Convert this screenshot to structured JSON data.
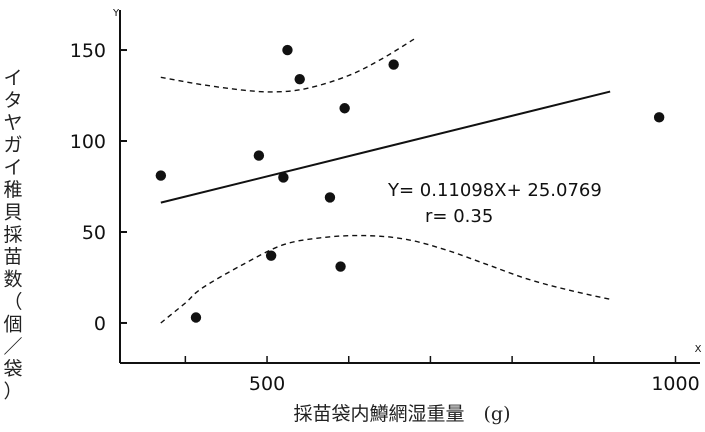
{
  "chart_data": {
    "type": "scatter",
    "xlabel": "採苗袋内鱒網湿重量　(g)",
    "ylabel": "イタヤガイ稚貝採苗数（個／袋）",
    "x_axis_letter": "X",
    "y_axis_letter": "Y",
    "xlim": [
      320,
      1030
    ],
    "ylim": [
      -22,
      172
    ],
    "x_ticks": [
      500,
      1000
    ],
    "x_minor_ticks": [
      400,
      600,
      700,
      800,
      900
    ],
    "y_ticks": [
      0,
      50,
      100,
      150
    ],
    "grid": false,
    "points": [
      {
        "x": 370,
        "y": 81
      },
      {
        "x": 413,
        "y": 3
      },
      {
        "x": 490,
        "y": 92
      },
      {
        "x": 505,
        "y": 37
      },
      {
        "x": 520,
        "y": 80
      },
      {
        "x": 525,
        "y": 150
      },
      {
        "x": 540,
        "y": 134
      },
      {
        "x": 577,
        "y": 69
      },
      {
        "x": 590,
        "y": 31
      },
      {
        "x": 595,
        "y": 118
      },
      {
        "x": 655,
        "y": 142
      },
      {
        "x": 980,
        "y": 113
      }
    ],
    "regression": {
      "slope": 0.11098,
      "intercept": 25.0769,
      "x_range": [
        370,
        920
      ]
    },
    "confidence_upper": [
      [
        370,
        135
      ],
      [
        420,
        131
      ],
      [
        470,
        128
      ],
      [
        510,
        127
      ],
      [
        550,
        129
      ],
      [
        600,
        136
      ],
      [
        640,
        145
      ],
      [
        680,
        156
      ]
    ],
    "confidence_lower": [
      [
        370,
        0
      ],
      [
        400,
        11
      ],
      [
        420,
        19
      ],
      [
        470,
        32
      ],
      [
        520,
        43
      ],
      [
        570,
        47
      ],
      [
        620,
        48
      ],
      [
        670,
        46
      ],
      [
        720,
        40
      ],
      [
        770,
        32
      ],
      [
        820,
        24
      ],
      [
        870,
        18
      ],
      [
        920,
        13
      ]
    ],
    "annotations": {
      "equation": "Y= 0.11098X+ 25.0769",
      "r": "r= 0.35"
    }
  }
}
